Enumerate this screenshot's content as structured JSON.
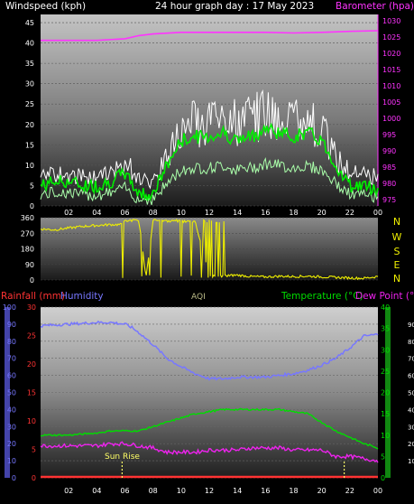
{
  "colors": {
    "windspeed": "#ffffff",
    "wind_avg": "#00ee00",
    "wind_lower": "#aaffaa",
    "barometer": "#ff33ff",
    "wind_dir": "#eeee00",
    "humidity": "#7777ff",
    "rainfall": "#ff3333",
    "temperature": "#00dd00",
    "dewpoint": "#ee22ee",
    "sunrise": "#ffff66",
    "aqi": "#bbbb88",
    "axis_text": "#ffffff"
  },
  "header": {
    "windspeed_label": "Windspeed (kph)",
    "title": "24 hour graph day : 17 May 2023",
    "barometer_label": "Barometer (hpa)"
  },
  "panel2": {
    "compass": [
      "N",
      "W",
      "S",
      "E",
      "N"
    ]
  },
  "panel3": {
    "rainfall_label": "Rainfall (mm)",
    "humidity_label": "Humidity",
    "aqi_label": "AQI",
    "temperature_label": "Temperature (°C)",
    "dewpoint_label": "Dew Point (°C)",
    "sunrise_label": "Sun Rise"
  },
  "chart_data": [
    {
      "type": "line",
      "title": "24 hour graph day : 17 May 2023",
      "x_ticks": [
        "02",
        "04",
        "06",
        "08",
        "10",
        "12",
        "14",
        "16",
        "18",
        "20",
        "22",
        "00"
      ],
      "y_left_label": "Windspeed (kph)",
      "y_left_ticks": [
        0,
        5,
        10,
        15,
        20,
        25,
        30,
        35,
        40,
        45
      ],
      "y_left_lim": [
        0,
        47
      ],
      "y_right_label": "Barometer (hpa)",
      "y_right_ticks": [
        975,
        980,
        985,
        990,
        995,
        1000,
        1005,
        1010,
        1015,
        1020,
        1025,
        1030
      ],
      "y_right_lim": [
        973,
        1032
      ],
      "series": [
        {
          "name": "Windspeed (kph)",
          "axis": "left",
          "x": [
            0,
            1,
            2,
            3,
            4,
            5,
            6,
            7,
            8,
            9,
            10,
            11,
            12,
            13,
            14,
            15,
            16,
            17,
            18,
            19,
            20,
            21,
            22,
            23,
            24
          ],
          "values": [
            9,
            10,
            10,
            9,
            9,
            10,
            14,
            9,
            7,
            16,
            24,
            26,
            26,
            28,
            26,
            27,
            30,
            28,
            27,
            28,
            24,
            15,
            11,
            10,
            9
          ]
        },
        {
          "name": "wind average",
          "axis": "left",
          "x": [
            0,
            1,
            2,
            3,
            4,
            5,
            6,
            7,
            8,
            9,
            10,
            11,
            12,
            13,
            14,
            15,
            16,
            17,
            18,
            19,
            20,
            21,
            22,
            23,
            24
          ],
          "values": [
            5,
            6,
            6,
            5,
            5,
            6,
            8,
            3,
            3,
            10,
            16,
            17,
            17,
            18,
            16,
            17,
            19,
            18,
            17,
            18,
            16,
            10,
            5,
            5,
            4
          ]
        },
        {
          "name": "Barometer (hpa)",
          "axis": "right",
          "x": [
            0,
            2,
            4,
            6,
            7,
            8,
            10,
            12,
            14,
            16,
            18,
            20,
            22,
            24
          ],
          "values": [
            1024,
            1024,
            1024,
            1024.5,
            1025.5,
            1026,
            1026.5,
            1026.5,
            1026.5,
            1026.5,
            1026.3,
            1026.5,
            1026.8,
            1027
          ]
        }
      ]
    },
    {
      "type": "line",
      "y_left_ticks": [
        0,
        90,
        180,
        270,
        360
      ],
      "y_left_lim": [
        0,
        360
      ],
      "series": [
        {
          "name": "wind direction",
          "x": [
            0,
            1,
            2,
            3,
            4,
            5,
            5.8,
            6,
            6.5,
            7,
            7.5,
            8,
            9,
            10,
            11,
            12,
            13,
            14,
            15,
            16,
            17,
            18,
            19,
            20,
            21,
            22,
            23,
            24
          ],
          "values": [
            295,
            290,
            300,
            310,
            315,
            320,
            320,
            340,
            345,
            340,
            20,
            345,
            340,
            340,
            335,
            20,
            25,
            28,
            20,
            18,
            22,
            20,
            22,
            18,
            15,
            12,
            10,
            20
          ]
        }
      ]
    },
    {
      "type": "line",
      "x_ticks": [
        "02",
        "04",
        "06",
        "08",
        "10",
        "12",
        "14",
        "16",
        "18",
        "20",
        "22",
        "00"
      ],
      "y_humidity_ticks": [
        0,
        10,
        20,
        30,
        40,
        50,
        60,
        70,
        80,
        90,
        100
      ],
      "y_humidity_lim": [
        0,
        100
      ],
      "y_rain_ticks": [
        0,
        5,
        10,
        15,
        20,
        25,
        30
      ],
      "y_rain_lim": [
        0,
        30
      ],
      "y_temp_ticks": [
        0,
        5,
        10,
        15,
        20,
        25,
        30,
        35,
        40
      ],
      "y_temp_lim": [
        0,
        40
      ],
      "y_right_ticks": [
        10,
        20,
        30,
        40,
        50,
        60,
        70,
        80,
        90
      ],
      "series": [
        {
          "name": "Humidity",
          "x": [
            0,
            2,
            4,
            5,
            6,
            6.5,
            7,
            8,
            9,
            10,
            11,
            12,
            13,
            14,
            15,
            16,
            17,
            18,
            19,
            20,
            21,
            22,
            23,
            24
          ],
          "values": [
            89,
            90,
            91,
            91,
            90,
            88,
            85,
            78,
            70,
            65,
            61,
            58,
            58,
            59,
            59,
            59,
            60,
            61,
            63,
            66,
            70,
            76,
            83,
            84
          ]
        },
        {
          "name": "Temperature (°C)",
          "x": [
            0,
            2,
            4,
            5,
            6,
            7,
            8,
            9,
            10,
            11,
            12,
            13,
            14,
            15,
            16,
            17,
            18,
            19,
            20,
            21,
            22,
            23,
            24
          ],
          "values": [
            10,
            10,
            10.5,
            11,
            11,
            11,
            12,
            13,
            14,
            15,
            15.5,
            16,
            16,
            16,
            16,
            16,
            15.5,
            15,
            13,
            11,
            9.5,
            8,
            7
          ]
        },
        {
          "name": "Dew Point (°C)",
          "x": [
            0,
            2,
            4,
            5,
            6,
            7,
            8,
            9,
            10,
            11,
            12,
            13,
            14,
            15,
            16,
            17,
            18,
            19,
            20,
            21,
            22,
            23,
            24
          ],
          "values": [
            7.5,
            7.5,
            7.5,
            8,
            8,
            7.5,
            7,
            6,
            6,
            6,
            6.5,
            6.5,
            6.5,
            7,
            7,
            7,
            6.5,
            6.5,
            6.5,
            5,
            5,
            4.5,
            4
          ]
        },
        {
          "name": "Rainfall (mm)",
          "x": [
            0,
            24
          ],
          "values": [
            0,
            0
          ]
        }
      ],
      "annotations": [
        {
          "text": "Sun Rise",
          "x": 5.8
        }
      ]
    }
  ]
}
